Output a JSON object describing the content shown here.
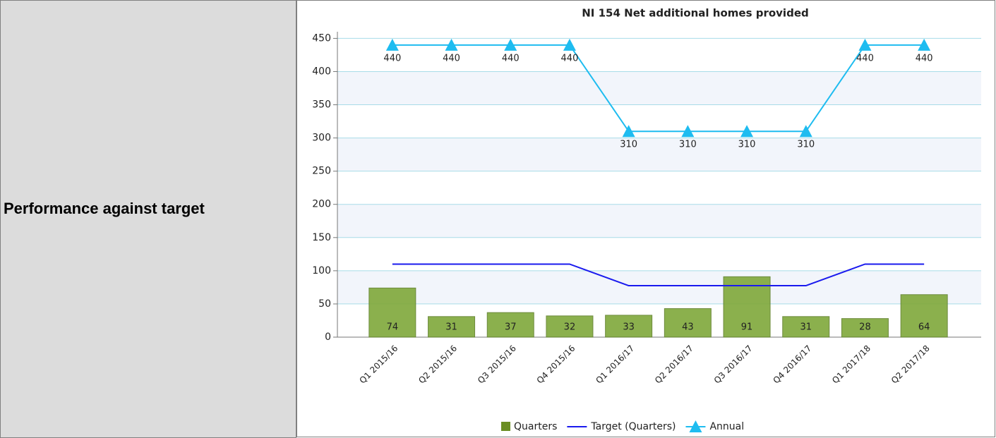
{
  "row_label": "Performance against target",
  "chart_data": {
    "type": "bar",
    "title": "NI 154 Net additional homes provided",
    "categories": [
      "Q1 2015/16",
      "Q2 2015/16",
      "Q3 2015/16",
      "Q4 2015/16",
      "Q1 2016/17",
      "Q2 2016/17",
      "Q3 2016/17",
      "Q4 2016/17",
      "Q1 2017/18",
      "Q2 2017/18"
    ],
    "series": [
      {
        "name": "Quarters",
        "type": "bar",
        "color": "#7fa83a",
        "values": [
          74,
          31,
          37,
          32,
          33,
          43,
          91,
          31,
          28,
          64
        ]
      },
      {
        "name": "Target (Quarters)",
        "type": "line",
        "color": "#1a1aee",
        "values": [
          110,
          110,
          110,
          110,
          77.5,
          77.5,
          77.5,
          77.5,
          110,
          110
        ]
      },
      {
        "name": "Annual",
        "type": "line",
        "marker": "triangle",
        "color": "#1ebcf0",
        "values": [
          440,
          440,
          440,
          440,
          310,
          310,
          310,
          310,
          440,
          440
        ]
      }
    ],
    "ylim": [
      0,
      460
    ],
    "yticks": [
      0,
      50,
      100,
      150,
      200,
      250,
      300,
      350,
      400,
      450
    ],
    "grid": true,
    "legend": "bottom"
  }
}
